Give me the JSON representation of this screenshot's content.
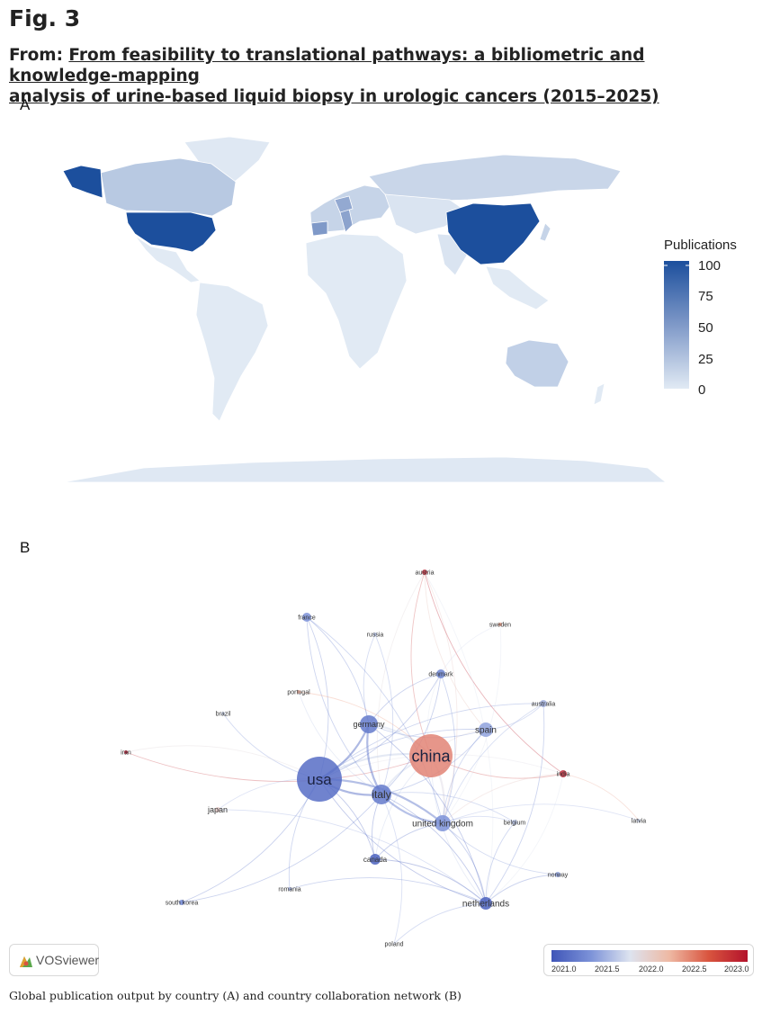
{
  "figure": {
    "label": "Fig. 3",
    "from_prefix": "From: ",
    "title_line1": "From feasibility to translational pathways: a bibliometric and knowledge-mapping",
    "title_line2": "analysis of urine-based liquid biopsy in urologic cancers (2015–2025)",
    "caption": "Global publication output by country (A) and country collaboration network (B)"
  },
  "panels": {
    "a": "A",
    "b": "B"
  },
  "map": {
    "legend_title": "Publications",
    "legend_ticks": [
      "100",
      "75",
      "50",
      "25",
      "0"
    ],
    "scale_max": 100,
    "color_low": "#e1eaf4",
    "color_high": "#1c4f9d"
  },
  "network": {
    "nodes": [
      {
        "label": "austria",
        "year": 2022.9
      },
      {
        "label": "sweden",
        "year": 2022.5
      },
      {
        "label": "france",
        "year": 2021.5
      },
      {
        "label": "russia",
        "year": 2021.8
      },
      {
        "label": "denmark",
        "year": 2021.4
      },
      {
        "label": "portugal",
        "year": 2022.4
      },
      {
        "label": "australia",
        "year": 2021.7
      },
      {
        "label": "brazil",
        "year": 2021.9
      },
      {
        "label": "germany",
        "year": 2021.3
      },
      {
        "label": "spain",
        "year": 2021.6
      },
      {
        "label": "china",
        "year": 2022.6
      },
      {
        "label": "iran",
        "year": 2023.0
      },
      {
        "label": "usa",
        "year": 2021.2
      },
      {
        "label": "india",
        "year": 2022.9
      },
      {
        "label": "italy",
        "year": 2021.3
      },
      {
        "label": "japan",
        "year": 2022.2
      },
      {
        "label": "united kingdom",
        "year": 2021.5
      },
      {
        "label": "belgium",
        "year": 2021.8
      },
      {
        "label": "latvia",
        "year": 2021.9
      },
      {
        "label": "canada",
        "year": 2021.1
      },
      {
        "label": "norway",
        "year": 2021.6
      },
      {
        "label": "romania",
        "year": 2021.7
      },
      {
        "label": "south korea",
        "year": 2021.4
      },
      {
        "label": "netherlands",
        "year": 2021.1
      },
      {
        "label": "poland",
        "year": 2022.0
      }
    ],
    "vosviewer_label": "VOSviewer",
    "colorbar_ticks": [
      "2021.0",
      "2021.5",
      "2022.0",
      "2022.5",
      "2023.0"
    ],
    "colorbar_colors": {
      "low": "#3f55b8",
      "mid": "#dde3ef",
      "high": "#b3122b"
    }
  },
  "chart_data": {
    "type": "heatmap",
    "legend": "Publications",
    "scale": [
      0,
      100
    ],
    "countries": [
      {
        "name": "USA",
        "level": 100
      },
      {
        "name": "China",
        "level": 100
      },
      {
        "name": "Italy",
        "level": 45
      },
      {
        "name": "Canada",
        "level": 25
      },
      {
        "name": "Germany",
        "level": 35
      },
      {
        "name": "Spain",
        "level": 40
      },
      {
        "name": "Netherlands",
        "level": 30
      },
      {
        "name": "United Kingdom",
        "level": 22
      },
      {
        "name": "Australia",
        "level": 20
      },
      {
        "name": "Russia",
        "level": 15
      }
    ]
  }
}
